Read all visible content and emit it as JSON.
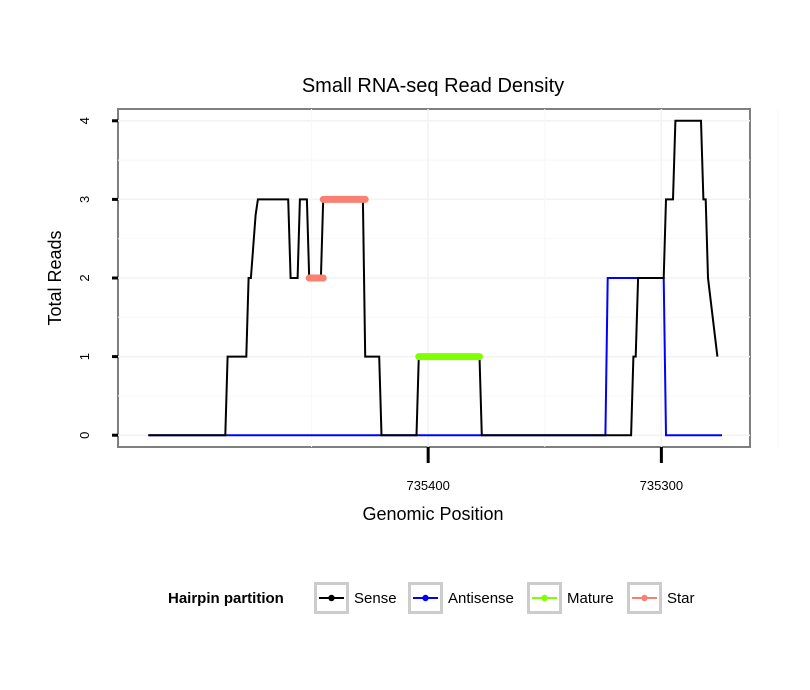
{
  "chart_data": {
    "type": "line",
    "title": "Small RNA-seq Read Density",
    "xlabel": "Genomic Position",
    "ylabel": "Total Reads",
    "x_reversed": true,
    "xlim": [
      735533,
      735262
    ],
    "ylim": [
      -0.15,
      4.15
    ],
    "x_ticks": [
      735400,
      735300
    ],
    "x_tick_labels": [
      "735400",
      "735300"
    ],
    "y_ticks": [
      0,
      1,
      2,
      3,
      4
    ],
    "y_tick_labels": [
      "0",
      "1",
      "2",
      "3",
      "4"
    ],
    "grid": true,
    "legend": {
      "title": "Hairpin partition",
      "placement": "bottom",
      "items": [
        {
          "label": "Sense",
          "color": "#000000"
        },
        {
          "label": "Antisense",
          "color": "#0000ff"
        },
        {
          "label": "Mature",
          "color": "#7fff00"
        },
        {
          "label": "Star",
          "color": "#fa8072"
        }
      ]
    },
    "series": [
      {
        "name": "Sense",
        "color": "#000000",
        "x": [
          735520,
          735487,
          735486,
          735478,
          735477,
          735476,
          735474,
          735473,
          735460,
          735459,
          735456,
          735455,
          735452,
          735451,
          735446,
          735445,
          735428,
          735427,
          735421,
          735420,
          735412,
          735405,
          735404,
          735378,
          735377,
          735313,
          735312,
          735311,
          735310,
          735299,
          735298,
          735295,
          735294,
          735283,
          735282,
          735281,
          735280,
          735276
        ],
        "y": [
          0,
          0,
          1,
          1,
          2,
          2,
          2.8,
          3,
          3,
          2,
          2,
          3,
          3,
          2,
          2,
          3,
          3,
          1,
          1,
          0,
          0,
          0,
          1,
          1,
          0,
          0,
          1,
          1,
          2,
          2,
          3,
          3,
          4,
          4,
          3,
          3,
          2,
          1
        ]
      },
      {
        "name": "Antisense",
        "color": "#0000ff",
        "x": [
          735520,
          735324,
          735323,
          735299,
          735298,
          735274
        ],
        "y": [
          0,
          0,
          2,
          2,
          0,
          0
        ]
      }
    ],
    "segments": [
      {
        "name": "Star",
        "color": "#fa8072",
        "x_from": 735451,
        "x_to": 735445,
        "y": 2
      },
      {
        "name": "Star",
        "color": "#fa8072",
        "x_from": 735445,
        "x_to": 735427,
        "y": 3
      },
      {
        "name": "Mature",
        "color": "#7fff00",
        "x_from": 735404,
        "x_to": 735378,
        "y": 1
      }
    ]
  }
}
